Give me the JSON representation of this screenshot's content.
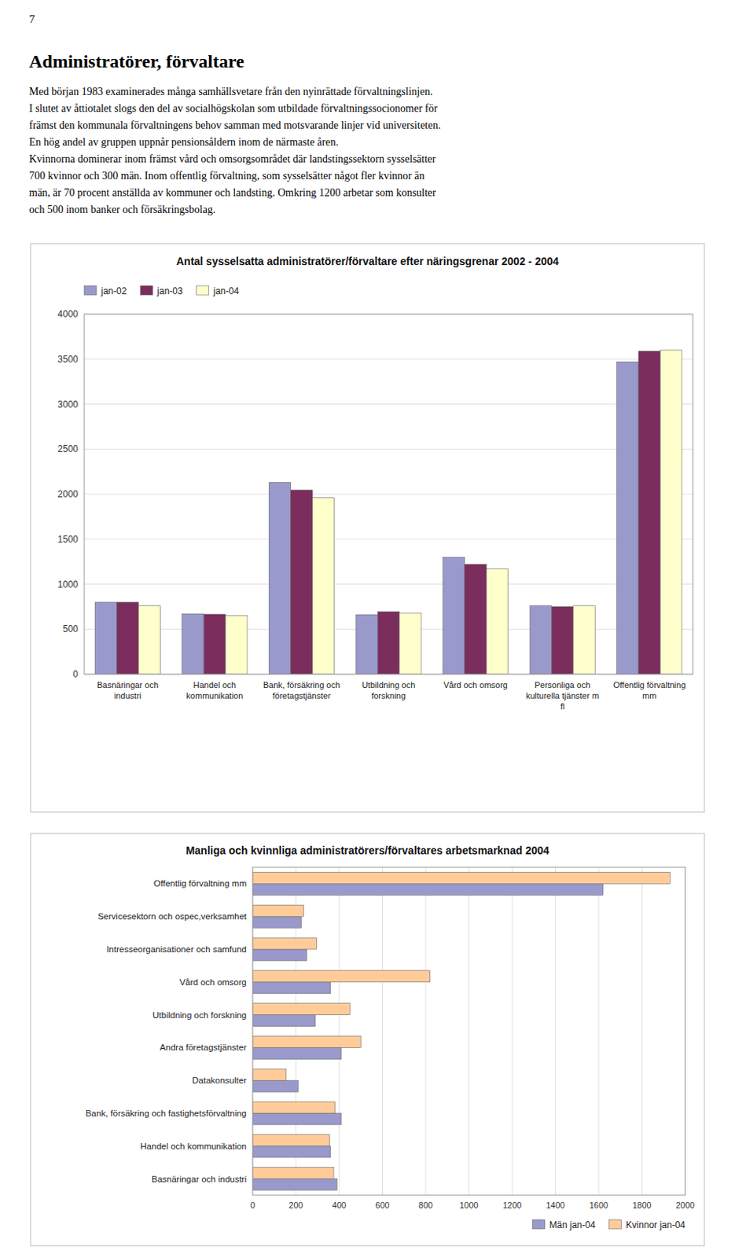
{
  "page_number": "7",
  "title": "Administratörer, förvaltare",
  "text": "Med början 1983 examinerades många samhällsvetare från den nyinrättade förvaltningslinjen.\nI slutet av åttiotalet slogs den del av socialhögskolan som utbildade förvaltningssocionomer för\nfrämst den kommunala förvaltningens behov samman med motsvarande linjer vid universiteten.\nEn hög andel av gruppen uppnår pensionsåldern inom de närmaste åren.\nKvinnorna dominerar inom främst vård och omsorgsområdet där landstingssektorn sysselsätter\n700 kvinnor och 300 män. Inom offentlig förvaltning, som sysselsätter något fler kvinnor än\nmän, är 70 procent anställda av kommuner och landsting. Omkring 1200 arbetar som konsulter\noch 500 inom banker och försäkringsbolag.",
  "chart_data": [
    {
      "type": "bar",
      "title": "Antal sysselsatta administratörer/förvaltare efter näringsgrenar 2002 - 2004",
      "categories": [
        "Basnäringar och\nindustri",
        "Handel och\nkommunikation",
        "Bank, försäkring och\nföretagstjänster",
        "Utbildning och\nforskning",
        "Vård och omsorg",
        "Personliga och\nkulturella tjänster m\nfl",
        "Offentlig förvaltning\nmm"
      ],
      "series": [
        {
          "name": "jan-02",
          "color": "#9999CC",
          "values": [
            800,
            670,
            2130,
            660,
            1300,
            760,
            3470
          ]
        },
        {
          "name": "jan-03",
          "color": "#7B2D5E",
          "values": [
            800,
            665,
            2045,
            695,
            1220,
            750,
            3590
          ]
        },
        {
          "name": "jan-04",
          "color": "#FFFFCC",
          "values": [
            760,
            650,
            1960,
            680,
            1170,
            760,
            3600
          ]
        }
      ],
      "ylim": [
        0,
        4000
      ],
      "yticks": [
        0,
        500,
        1000,
        1500,
        2000,
        2500,
        3000,
        3500,
        4000
      ],
      "grid": true,
      "legend": "upper left"
    },
    {
      "type": "bar",
      "orientation": "horizontal",
      "title": "Manliga och kvinnliga administratörers/förvaltares arbetsmarknad 2004",
      "categories": [
        "Offentlig förvaltning mm",
        "Servicesektorn och ospec,verksamhet",
        "Intresseorganisationer och samfund",
        "Vård och omsorg",
        "Utbildning och forskning",
        "Andra företagstjänster",
        "Datakonsulter",
        "Bank, försäkring och fastighetsförvaltning",
        "Handel och kommunikation",
        "Basnäringar och industri"
      ],
      "series": [
        {
          "name": "Män jan-04",
          "color": "#9999CC",
          "values": [
            1620,
            225,
            250,
            360,
            290,
            410,
            210,
            410,
            360,
            390
          ]
        },
        {
          "name": "Kvinnor jan-04",
          "color": "#FFCC99",
          "values": [
            1930,
            235,
            295,
            820,
            450,
            500,
            155,
            380,
            355,
            375
          ]
        }
      ],
      "xlim": [
        0,
        2000
      ],
      "xticks": [
        0,
        200,
        400,
        600,
        800,
        1000,
        1200,
        1400,
        1600,
        1800,
        2000
      ],
      "grid": true,
      "legend": "lower right"
    }
  ]
}
